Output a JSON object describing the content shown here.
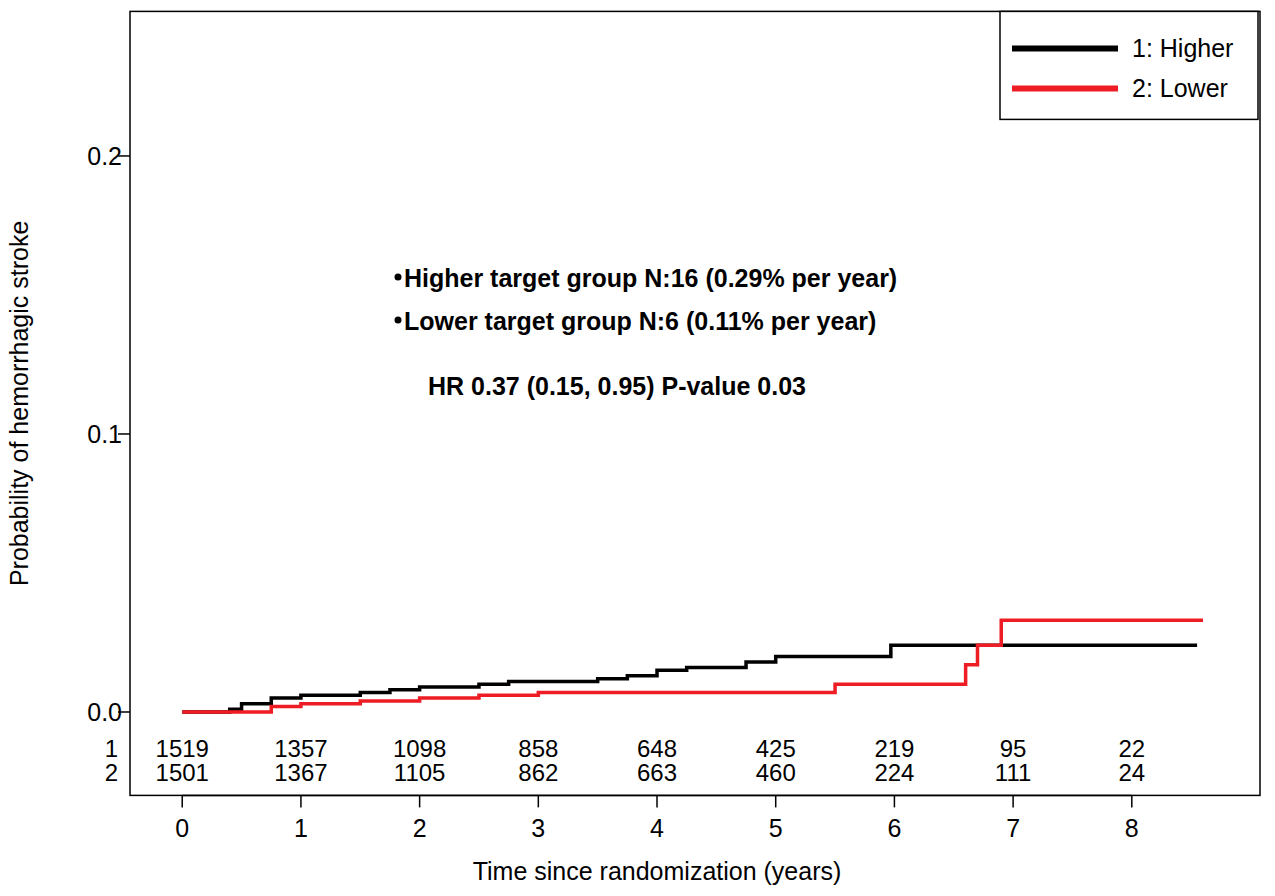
{
  "chart_data": {
    "type": "step",
    "y_label": "Probability of hemorrhagic stroke",
    "x_label": "Time since randomization (years)",
    "xlim": [
      -0.44,
      9.08
    ],
    "ylim": [
      -0.03,
      0.252
    ],
    "xticks": [
      0,
      1,
      2,
      3,
      4,
      5,
      6,
      7,
      8
    ],
    "yticks": [
      {
        "value": 0,
        "label": "0.0"
      },
      0.1,
      0.2
    ],
    "legend": "upper right",
    "grid": false,
    "annotations": [
      "Higher target group N:16 (0.29% per year)",
      "Lower target group N:6 (0.11% per year)",
      "HR 0.37 (0.15, 0.95) P-value 0.03"
    ],
    "at_risk_x": [
      0,
      1,
      2,
      3,
      4,
      5,
      6,
      7,
      8
    ],
    "series": [
      {
        "name": "1: Higher",
        "row_label": "1",
        "color": "#000000",
        "x": [
          0,
          0.4,
          0.5,
          0.75,
          1.0,
          1.5,
          1.75,
          2.0,
          2.5,
          2.75,
          3.5,
          3.75,
          4.0,
          4.25,
          4.75,
          5.0,
          5.97,
          8.55
        ],
        "values": [
          0,
          0.001,
          0.003,
          0.005,
          0.006,
          0.007,
          0.008,
          0.009,
          0.01,
          0.011,
          0.012,
          0.013,
          0.015,
          0.016,
          0.018,
          0.02,
          0.024,
          0.024
        ],
        "at_risk": [
          1519,
          1357,
          1098,
          858,
          648,
          425,
          219,
          95,
          22
        ]
      },
      {
        "name": "2: Lower",
        "row_label": "2",
        "color": "#ee1c25",
        "x": [
          0,
          0.75,
          1.0,
          1.5,
          2.0,
          2.5,
          3.0,
          5.5,
          6.6,
          6.7,
          6.9,
          8.6
        ],
        "values": [
          0,
          0.002,
          0.003,
          0.004,
          0.005,
          0.006,
          0.007,
          0.01,
          0.017,
          0.024,
          0.033,
          0.033
        ],
        "at_risk": [
          1501,
          1367,
          1105,
          862,
          663,
          460,
          224,
          111,
          24
        ]
      }
    ]
  }
}
